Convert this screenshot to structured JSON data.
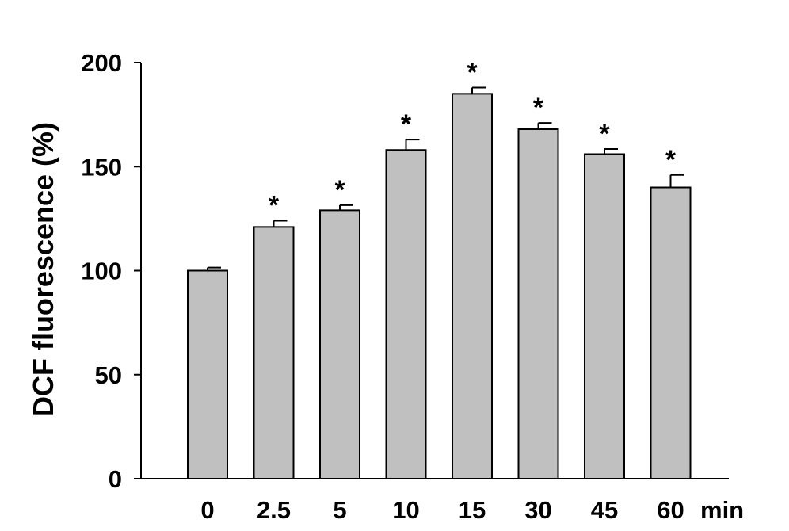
{
  "chart_data": {
    "type": "bar",
    "categories": [
      "0",
      "2.5",
      "5",
      "10",
      "15",
      "30",
      "45",
      "60"
    ],
    "x_unit_label": "min",
    "values": [
      100,
      121,
      129,
      158,
      185,
      168,
      156,
      140
    ],
    "error": [
      1.5,
      3,
      2.5,
      5,
      3,
      3,
      2.5,
      6
    ],
    "significance": [
      "",
      "*",
      "*",
      "*",
      "*",
      "*",
      "*",
      "*"
    ],
    "xlabel": "",
    "ylabel": "DCF fluorescence (%)",
    "ylim": [
      0,
      200
    ],
    "yticks": [
      0,
      50,
      100,
      150,
      200
    ],
    "grid": false,
    "bar_color": "#c0c0c0",
    "edge_color": "#000000"
  }
}
